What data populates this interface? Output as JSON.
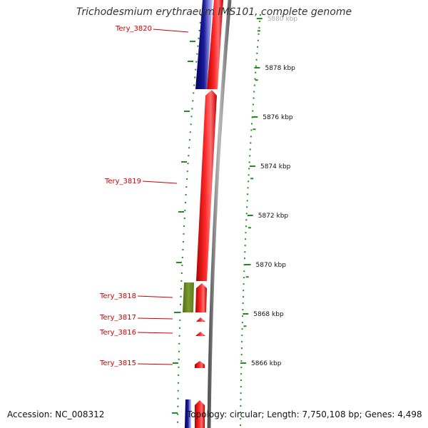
{
  "title": "Trichodesmium erythraeum IMS101, complete genome",
  "footer": {
    "accession": "Accession: NC_008312",
    "summary": "Topology: circular; Length: 7,750,108 bp; Genes: 4,498"
  },
  "colors": {
    "forward_gene": "#ff0000",
    "reverse_gene": "#000080",
    "rna_gene": "#6b8e23",
    "backbone": "#808080",
    "label": "#cc0000",
    "ticks": "#228b22",
    "tick_labels": "#111111"
  },
  "scale": {
    "unit": "kbp",
    "ticks": [
      {
        "pos": 5880,
        "label": "5880 kbp"
      },
      {
        "pos": 5878,
        "label": "5878 kbp"
      },
      {
        "pos": 5876,
        "label": "5876 kbp"
      },
      {
        "pos": 5874,
        "label": "5874 kbp"
      },
      {
        "pos": 5872,
        "label": "5872 kbp"
      },
      {
        "pos": 5870,
        "label": "5870 kbp"
      },
      {
        "pos": 5868,
        "label": "5868 kbp"
      },
      {
        "pos": 5866,
        "label": "5866 kbp"
      }
    ]
  },
  "genes": [
    {
      "name": "Tery_3820",
      "label": "Tery_3820"
    },
    {
      "name": "Tery_3819",
      "label": "Tery_3819"
    },
    {
      "name": "Tery_3818",
      "label": "Tery_3818"
    },
    {
      "name": "Tery_3817",
      "label": "Tery_3817"
    },
    {
      "name": "Tery_3816",
      "label": "Tery_3816"
    },
    {
      "name": "Tery_3815",
      "label": "Tery_3815"
    }
  ]
}
